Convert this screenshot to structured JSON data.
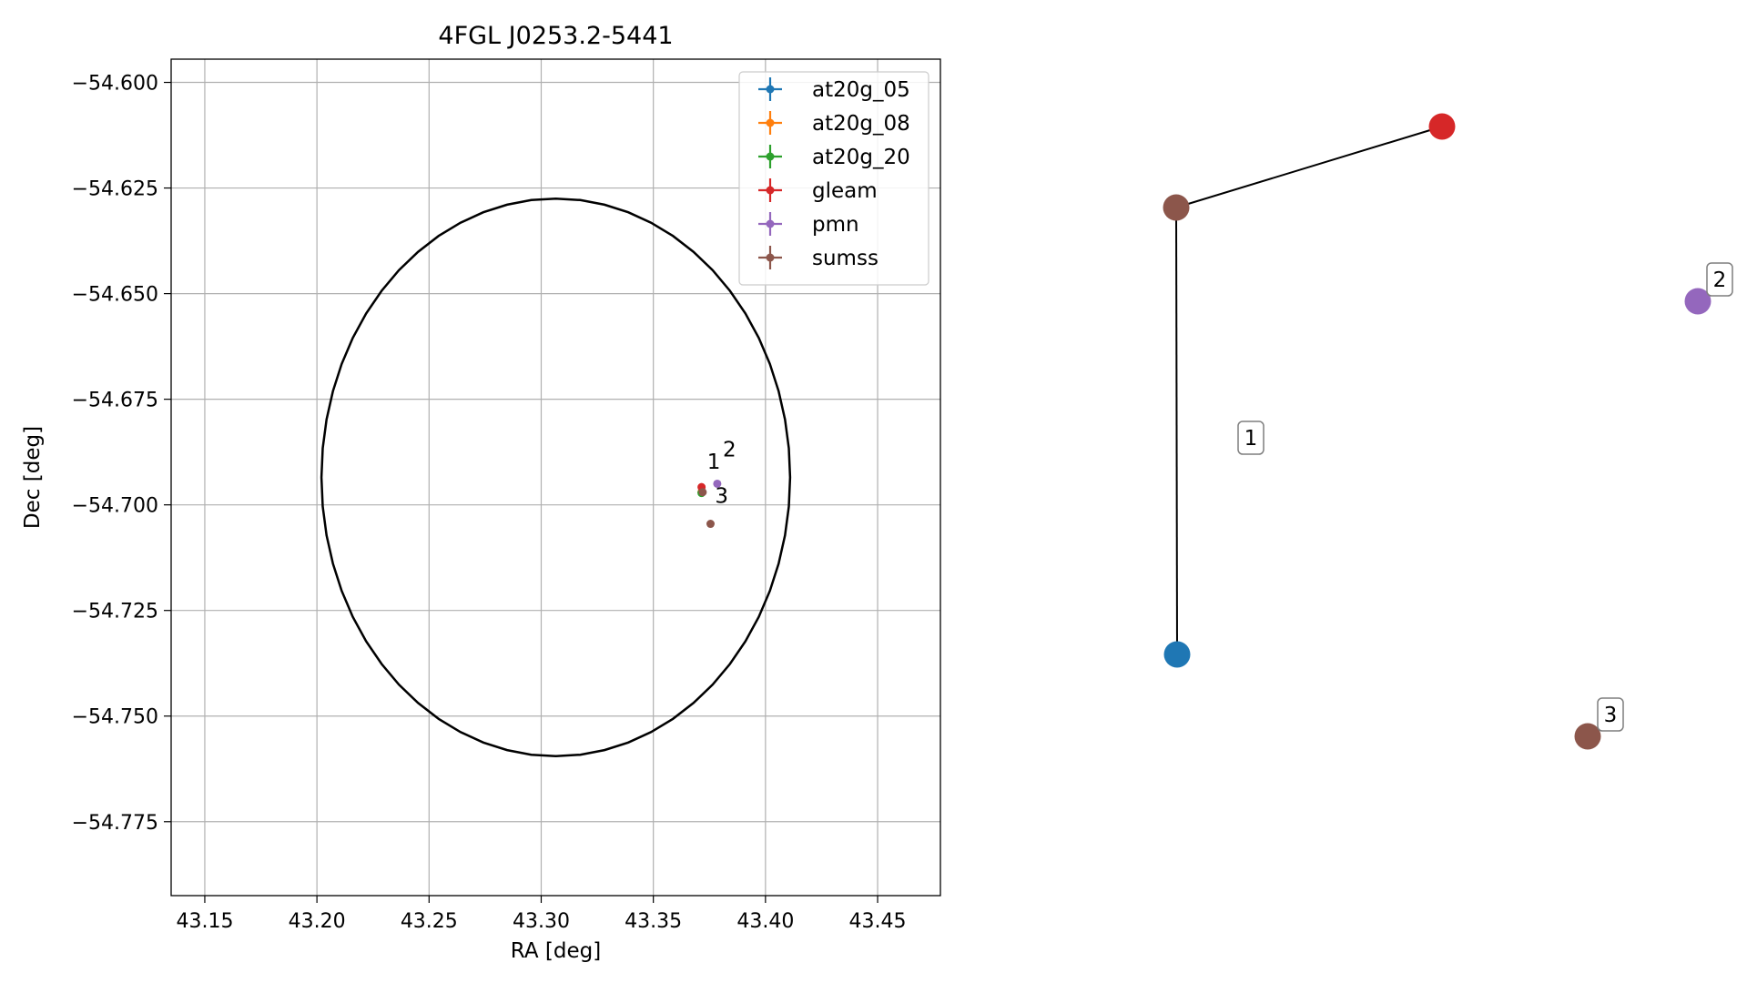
{
  "chart_data": [
    {
      "type": "scatter",
      "title": "4FGL J0253.2-5441",
      "xlabel": "RA [deg]",
      "ylabel": "Dec [deg]",
      "xlim": [
        43.135,
        43.478
      ],
      "ylim": [
        -54.7925,
        -54.5945
      ],
      "x_ticks": [
        43.15,
        43.2,
        43.25,
        43.3,
        43.35,
        43.4,
        43.45
      ],
      "x_tick_labels": [
        "43.15",
        "43.20",
        "43.25",
        "43.30",
        "43.35",
        "43.40",
        "43.45"
      ],
      "y_ticks": [
        -54.6,
        -54.625,
        -54.65,
        -54.675,
        -54.7,
        -54.725,
        -54.75,
        -54.775
      ],
      "y_tick_labels": [
        "−54.600",
        "−54.625",
        "−54.650",
        "−54.675",
        "−54.700",
        "−54.725",
        "−54.750",
        "−54.775"
      ],
      "grid": true,
      "legend_position": "top-right",
      "ellipse": {
        "center_ra": 43.3065,
        "center_dec": -54.6935,
        "semi_axis_ra": 0.1045,
        "semi_axis_dec": 0.066,
        "color": "#000000"
      },
      "series": [
        {
          "name": "at20g_05",
          "color": "#1f77b4",
          "points": [
            {
              "ra": 43.3715,
              "dec": -54.697
            }
          ]
        },
        {
          "name": "at20g_08",
          "color": "#ff7f0e",
          "points": [
            {
              "ra": 43.3715,
              "dec": -54.697
            }
          ]
        },
        {
          "name": "at20g_20",
          "color": "#2ca02c",
          "points": [
            {
              "ra": 43.3715,
              "dec": -54.6972
            }
          ]
        },
        {
          "name": "gleam",
          "color": "#d62728",
          "points": [
            {
              "ra": 43.3715,
              "dec": -54.6958
            }
          ]
        },
        {
          "name": "pmn",
          "color": "#9467bd",
          "points": [
            {
              "ra": 43.3785,
              "dec": -54.695
            }
          ]
        },
        {
          "name": "sumss",
          "color": "#8c564b",
          "points": [
            {
              "ra": 43.372,
              "dec": -54.697
            },
            {
              "ra": 43.3755,
              "dec": -54.7045
            }
          ]
        }
      ],
      "annotations": [
        {
          "text": "1",
          "ra": 43.374,
          "dec": -54.6915
        },
        {
          "text": "2",
          "ra": 43.381,
          "dec": -54.6885
        },
        {
          "text": "3",
          "ra": 43.3775,
          "dec": -54.6995
        }
      ]
    },
    {
      "type": "graph",
      "nodes": [
        {
          "id": "n_sumss_1",
          "color": "#8c564b"
        },
        {
          "id": "n_gleam",
          "color": "#d62728"
        },
        {
          "id": "n_at20g",
          "color": "#1f77b4"
        },
        {
          "id": "n_pmn",
          "color": "#9467bd"
        },
        {
          "id": "n_sumss_2",
          "color": "#8c564b"
        }
      ],
      "edges": [
        {
          "from": "n_sumss_1",
          "to": "n_gleam"
        },
        {
          "from": "n_sumss_1",
          "to": "n_at20g"
        }
      ],
      "labels": [
        {
          "text": "1",
          "attached_to": "component-1"
        },
        {
          "text": "2",
          "attached_to": "n_pmn"
        },
        {
          "text": "3",
          "attached_to": "n_sumss_2"
        }
      ]
    }
  ]
}
